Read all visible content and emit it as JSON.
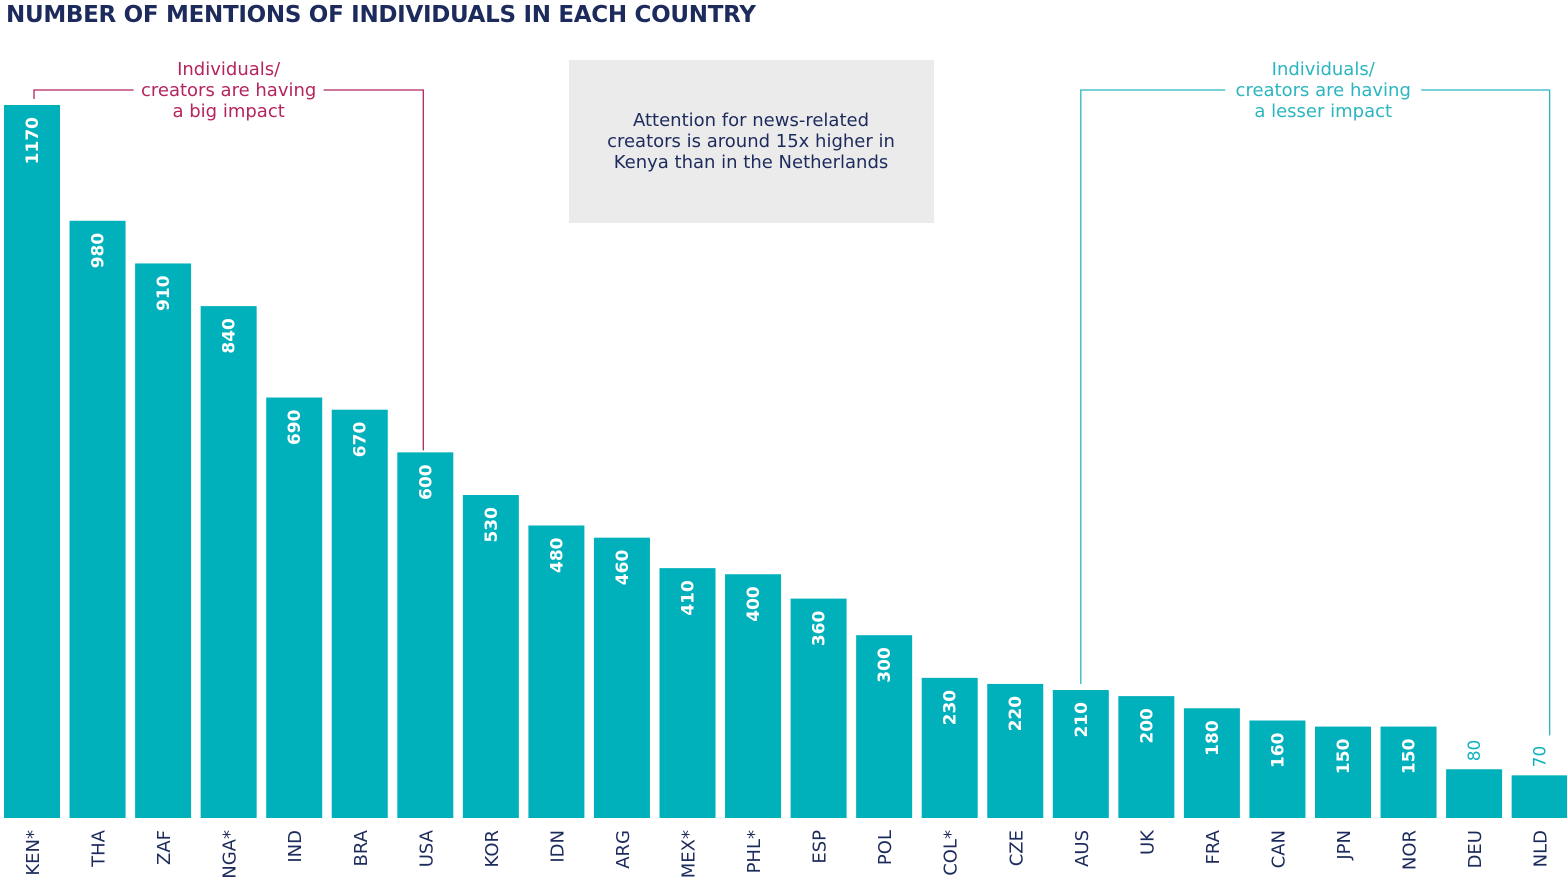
{
  "chart_data": {
    "type": "bar",
    "title": "NUMBER OF MENTIONS OF INDIVIDUALS IN EACH COUNTRY",
    "xlabel": "",
    "ylabel": "",
    "ylim": [
      0,
      1200
    ],
    "grid": false,
    "bar_color": "#00b0bb",
    "categories": [
      "KEN*",
      "THA",
      "ZAF",
      "NGA*",
      "IND",
      "BRA",
      "USA",
      "KOR",
      "IDN",
      "ARG",
      "MEX*",
      "PHL*",
      "ESP",
      "POL",
      "COL*",
      "CZE",
      "AUS",
      "UK",
      "FRA",
      "CAN",
      "JPN",
      "NOR",
      "DEU",
      "NLD"
    ],
    "values": [
      1170,
      980,
      910,
      840,
      690,
      670,
      600,
      530,
      480,
      460,
      410,
      400,
      360,
      300,
      230,
      220,
      210,
      200,
      180,
      160,
      150,
      150,
      80,
      70
    ],
    "value_labels": [
      "1170",
      "980",
      "910",
      "840",
      "690",
      "670",
      "600",
      "530",
      "480",
      "460",
      "410",
      "400",
      "360",
      "300",
      "230",
      "220",
      "210",
      "200",
      "180",
      "160",
      "150",
      "150",
      "80",
      "70"
    ],
    "annotations": [
      {
        "lines": [
          "Individuals/",
          "creators are having",
          "a big impact"
        ],
        "color": "#b5245e",
        "from_category": "KEN*",
        "to_category": "USA"
      },
      {
        "lines": [
          "Individuals/",
          "creators are having",
          "a lesser impact"
        ],
        "color": "#2bb5c0",
        "from_category": "AUS",
        "to_category": "NLD"
      }
    ],
    "callout": {
      "lines": [
        "Attention for news-related",
        "creators is around 15x higher in",
        "Kenya than in the Netherlands"
      ],
      "background": "#ebebeb"
    }
  }
}
